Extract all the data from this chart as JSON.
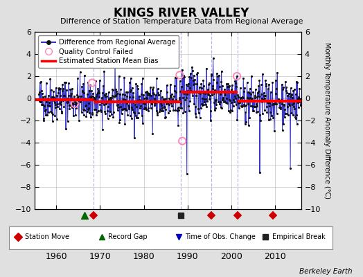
{
  "title": "KINGS RIVER VALLEY",
  "subtitle": "Difference of Station Temperature Data from Regional Average",
  "ylabel": "Monthly Temperature Anomaly Difference (°C)",
  "xlim": [
    1955,
    2016
  ],
  "ylim": [
    -10,
    6
  ],
  "yticks": [
    -10,
    -8,
    -6,
    -4,
    -2,
    0,
    2,
    4,
    6
  ],
  "xticks": [
    1960,
    1970,
    1980,
    1990,
    2000,
    2010
  ],
  "bg_color": "#e0e0e0",
  "plot_bg_color": "#ffffff",
  "line_color": "#3333cc",
  "dot_color": "#111111",
  "bias_color": "#ff0000",
  "qc_color": "#ff88bb",
  "station_move_color": "#cc0000",
  "record_gap_color": "#006600",
  "obs_change_color": "#0000bb",
  "empirical_break_color": "#222222",
  "station_moves": [
    1968.5,
    1995.5,
    2001.5,
    2009.5
  ],
  "record_gaps": [
    1966.5
  ],
  "obs_changes": [],
  "empirical_breaks": [
    1988.5
  ],
  "bias_segments": [
    {
      "x": [
        1955.0,
        1968.5
      ],
      "y": [
        -0.1,
        -0.1
      ]
    },
    {
      "x": [
        1968.5,
        1988.5
      ],
      "y": [
        -0.3,
        -0.3
      ]
    },
    {
      "x": [
        1988.5,
        1995.5
      ],
      "y": [
        0.55,
        0.55
      ]
    },
    {
      "x": [
        1995.5,
        2001.5
      ],
      "y": [
        0.55,
        0.55
      ]
    },
    {
      "x": [
        2001.5,
        2016.0
      ],
      "y": [
        -0.25,
        -0.25
      ]
    }
  ],
  "vline_times": [
    1968.5,
    1988.5,
    1995.5,
    2001.5
  ],
  "random_seed": 42,
  "watermark": "Berkeley Earth"
}
